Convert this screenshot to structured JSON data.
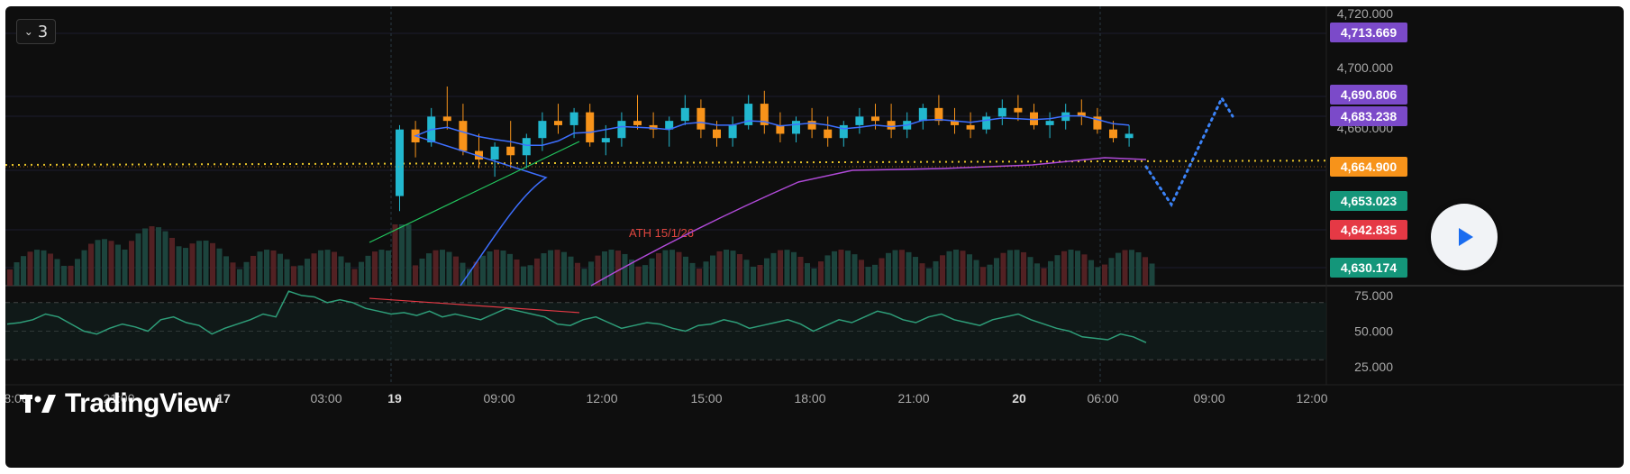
{
  "toolbar": {
    "collapse_count": "3",
    "collapse_icon": "chevron-down-icon"
  },
  "branding": {
    "logo_text": "TradingView"
  },
  "controls": {
    "play_icon": "play-icon"
  },
  "annotation": {
    "ath_label": "ATH 15/1/26"
  },
  "colors": {
    "bull": "#22b8cf",
    "bear": "#f7931a",
    "ma_fast": "#3d6fff",
    "ma_slow": "#b04ad8",
    "trend_green": "#22c55e",
    "ath_line": "#e6c229",
    "projection": "#3b82f6",
    "rsi": "#2e9e79",
    "vol_up": "#1e4a42",
    "vol_down": "#5a2326"
  },
  "chart_data": [
    {
      "type": "candlestick",
      "x_ticks": [
        "8:00",
        "21:00",
        "17",
        "03:00",
        "19",
        "09:00",
        "12:00",
        "15:00",
        "18:00",
        "21:00",
        "20",
        "06:00",
        "09:00",
        "12:00"
      ],
      "y_ticks": [
        "4,720.000",
        "4,700.000",
        "4,660.000"
      ],
      "ylim": [
        4628,
        4722
      ],
      "ath_level_range": [
        4651.5,
        4653.5
      ],
      "price_labels": [
        {
          "value": "4,713.669",
          "color": "#7b4ac9"
        },
        {
          "value": "4,690.806",
          "color": "#7b4ac9"
        },
        {
          "value": "4,683.238",
          "color": "#7b4ac9"
        },
        {
          "value": "4,664.900",
          "color": "#f7931a"
        },
        {
          "value": "4,653.023",
          "color": "#14967a"
        },
        {
          "value": "4,642.835",
          "color": "#e53945"
        },
        {
          "value": "4,630.174",
          "color": "#14967a"
        }
      ],
      "ohlc": [
        [
          4637,
          4670,
          4630,
          4668
        ],
        [
          4668,
          4672,
          4655,
          4662
        ],
        [
          4662,
          4678,
          4660,
          4674
        ],
        [
          4674,
          4688,
          4668,
          4672
        ],
        [
          4672,
          4680,
          4656,
          4658
        ],
        [
          4658,
          4666,
          4650,
          4654
        ],
        [
          4654,
          4662,
          4646,
          4660
        ],
        [
          4660,
          4672,
          4650,
          4656
        ],
        [
          4656,
          4666,
          4650,
          4664
        ],
        [
          4664,
          4676,
          4658,
          4672
        ],
        [
          4672,
          4680,
          4666,
          4670
        ],
        [
          4670,
          4678,
          4664,
          4676
        ],
        [
          4676,
          4680,
          4660,
          4662
        ],
        [
          4662,
          4670,
          4656,
          4664
        ],
        [
          4664,
          4676,
          4660,
          4672
        ],
        [
          4672,
          4684,
          4668,
          4670
        ],
        [
          4670,
          4676,
          4664,
          4668
        ],
        [
          4668,
          4674,
          4660,
          4672
        ],
        [
          4672,
          4684,
          4670,
          4678
        ],
        [
          4678,
          4682,
          4664,
          4668
        ],
        [
          4668,
          4672,
          4660,
          4664
        ],
        [
          4664,
          4674,
          4660,
          4670
        ],
        [
          4670,
          4684,
          4668,
          4680
        ],
        [
          4680,
          4686,
          4666,
          4670
        ],
        [
          4670,
          4676,
          4662,
          4666
        ],
        [
          4666,
          4674,
          4662,
          4672
        ],
        [
          4672,
          4678,
          4664,
          4668
        ],
        [
          4668,
          4674,
          4660,
          4664
        ],
        [
          4664,
          4672,
          4660,
          4670
        ],
        [
          4670,
          4678,
          4666,
          4674
        ],
        [
          4674,
          4680,
          4668,
          4672
        ],
        [
          4672,
          4680,
          4664,
          4668
        ],
        [
          4668,
          4676,
          4664,
          4672
        ],
        [
          4672,
          4680,
          4668,
          4678
        ],
        [
          4678,
          4684,
          4670,
          4672
        ],
        [
          4672,
          4678,
          4666,
          4670
        ],
        [
          4670,
          4676,
          4664,
          4668
        ],
        [
          4668,
          4676,
          4666,
          4674
        ],
        [
          4674,
          4682,
          4670,
          4678
        ],
        [
          4678,
          4684,
          4672,
          4676
        ],
        [
          4676,
          4680,
          4668,
          4670
        ],
        [
          4670,
          4676,
          4664,
          4672
        ],
        [
          4672,
          4680,
          4668,
          4676
        ],
        [
          4676,
          4682,
          4670,
          4674
        ],
        [
          4674,
          4678,
          4666,
          4668
        ],
        [
          4668,
          4672,
          4662,
          4664
        ],
        [
          4664,
          4670,
          4660,
          4666
        ]
      ],
      "indicators": [
        "moving average (fast)",
        "moving average (slow)",
        "volume",
        "trend line",
        "projection path"
      ]
    },
    {
      "type": "line",
      "y_ticks": [
        "75.000",
        "50.000",
        "25.000"
      ],
      "ylim": [
        20,
        80
      ],
      "levels": [
        70,
        50,
        30
      ],
      "rsi": [
        55,
        56,
        58,
        62,
        60,
        55,
        50,
        48,
        52,
        55,
        53,
        50,
        58,
        60,
        56,
        54,
        48,
        52,
        55,
        58,
        62,
        60,
        78,
        75,
        74,
        70,
        72,
        70,
        66,
        64,
        62,
        63,
        61,
        64,
        60,
        62,
        60,
        58,
        62,
        66,
        64,
        62,
        60,
        55,
        54,
        58,
        60,
        56,
        52,
        54,
        56,
        55,
        52,
        50,
        54,
        55,
        58,
        56,
        52,
        54,
        56,
        58,
        55,
        50,
        54,
        58,
        56,
        60,
        64,
        62,
        58,
        56,
        60,
        62,
        58,
        56,
        54,
        58,
        60,
        62,
        58,
        55,
        52,
        50,
        46,
        45,
        44,
        48,
        46,
        42
      ]
    }
  ]
}
